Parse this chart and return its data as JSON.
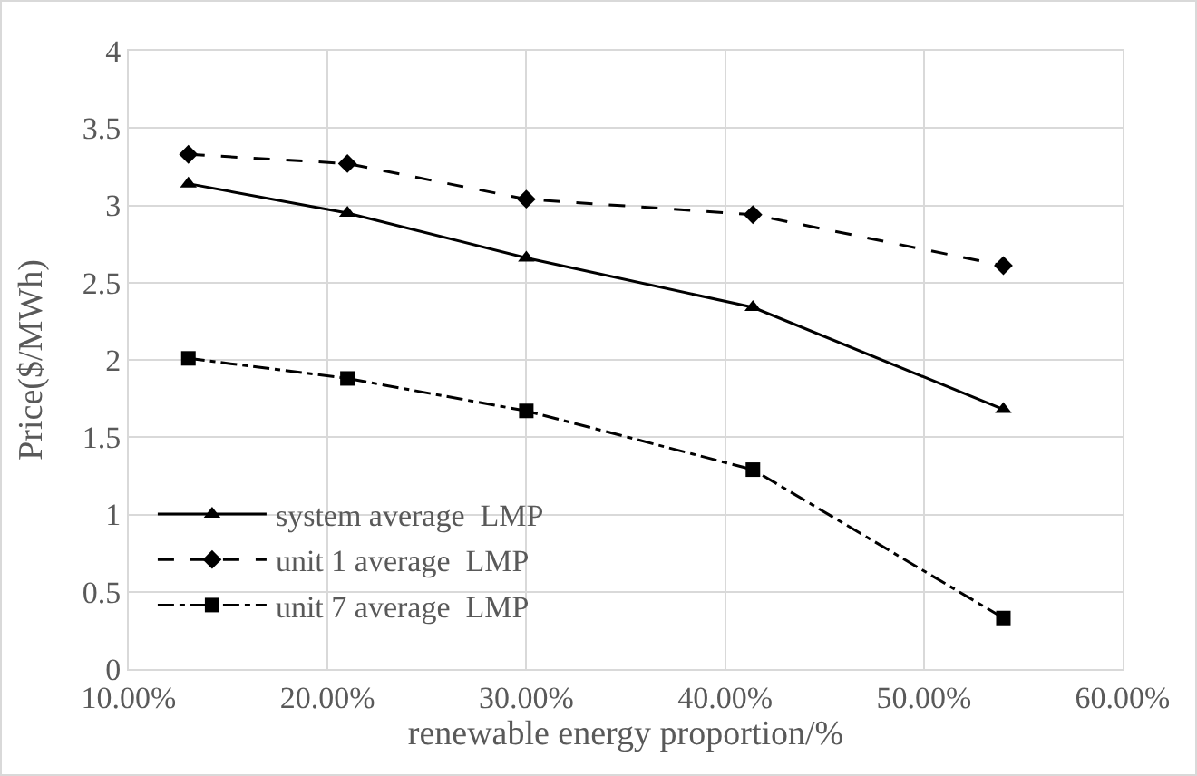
{
  "chart_data": {
    "type": "line",
    "xlabel": "renewable energy proportion/%",
    "ylabel": "Price($/MWh)",
    "x": [
      13,
      21,
      30,
      41.4,
      54
    ],
    "series": [
      {
        "name": "system average  LMP",
        "color": "#000000",
        "marker": "triangle",
        "line_style": "solid",
        "values": [
          3.14,
          2.95,
          2.66,
          2.34,
          1.68
        ]
      },
      {
        "name": "unit 1 average  LMP",
        "color": "#000000",
        "marker": "diamond",
        "line_style": "dashed",
        "values": [
          3.33,
          3.27,
          3.04,
          2.94,
          2.61
        ]
      },
      {
        "name": "unit 7 average  LMP",
        "color": "#000000",
        "marker": "square",
        "line_style": "dashdot",
        "values": [
          2.01,
          1.88,
          1.67,
          1.29,
          0.33
        ]
      }
    ],
    "xlim": [
      10,
      60
    ],
    "xticks": [
      {
        "value": 10,
        "label": "10.00%"
      },
      {
        "value": 20,
        "label": "20.00%"
      },
      {
        "value": 30,
        "label": "30.00%"
      },
      {
        "value": 40,
        "label": "40.00%"
      },
      {
        "value": 50,
        "label": "50.00%"
      },
      {
        "value": 60,
        "label": "60.00%"
      }
    ],
    "ylim": [
      0,
      4
    ],
    "yticks": [
      0,
      0.5,
      1,
      1.5,
      2,
      2.5,
      3,
      3.5,
      4
    ],
    "grid": true,
    "legend": "bottom left"
  }
}
